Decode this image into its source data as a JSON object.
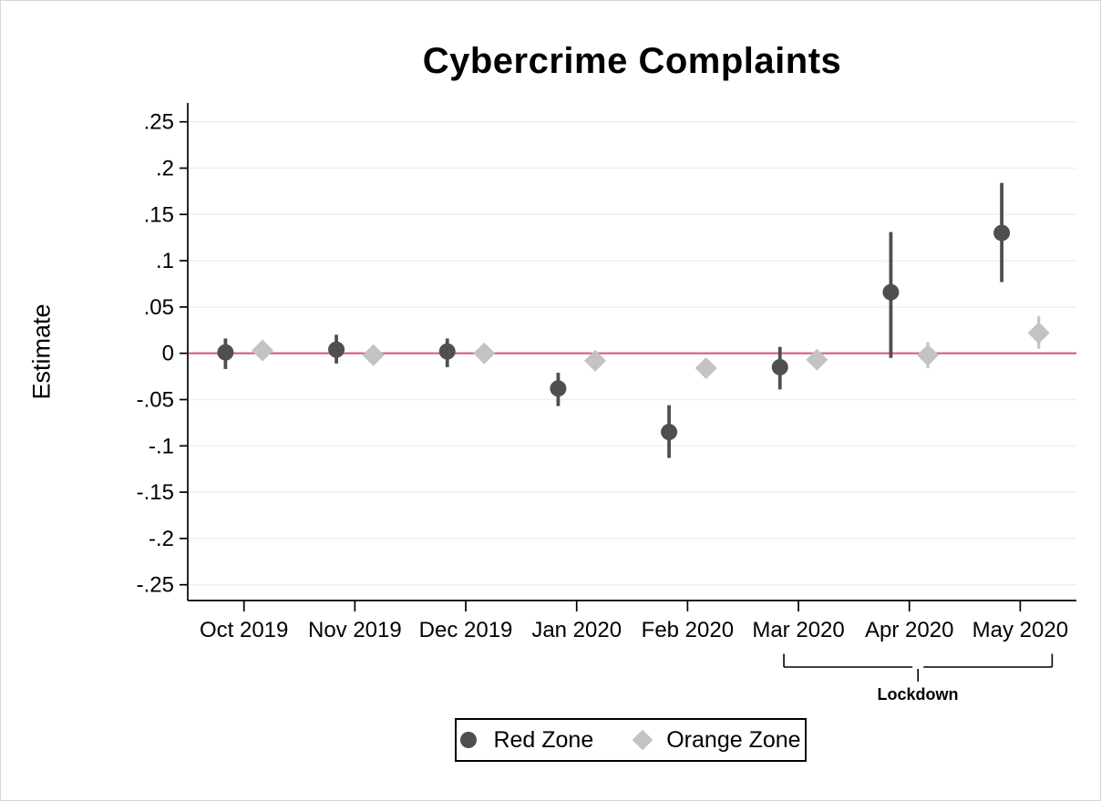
{
  "colors": {
    "red_zone": "#4f4f4f",
    "orange_zone": "#c3c3c3",
    "zero_line": "#d06278",
    "gridline": "#f0f0f0",
    "axis": "#000000"
  },
  "chart_data": {
    "type": "scatter",
    "subtype": "coefficient_plot_with_confidence_intervals",
    "title": "Cybercrime Complaints",
    "ylabel": "Estimate",
    "xlabel": "",
    "grid": true,
    "legend_position": "bottom-center",
    "ylim": [
      -0.27,
      0.27
    ],
    "yticks": [
      0.25,
      0.2,
      0.15,
      0.1,
      0.05,
      0,
      -0.05,
      -0.1,
      -0.15,
      -0.2,
      -0.25
    ],
    "ytick_labels": [
      ".25",
      ".2",
      ".15",
      ".1",
      ".05",
      "0",
      "-.05",
      "-.1",
      "-.15",
      "-.2",
      "-.25"
    ],
    "refline_y": 0,
    "categories": [
      "Oct 2019",
      "Nov 2019",
      "Dec 2019",
      "Jan 2020",
      "Feb 2020",
      "Mar 2020",
      "Apr 2020",
      "May 2020"
    ],
    "series": [
      {
        "name": "Red Zone",
        "marker": "circle",
        "color": "#4f4f4f",
        "estimates": [
          0.001,
          0.004,
          0.002,
          -0.038,
          -0.085,
          -0.015,
          0.066,
          0.13
        ],
        "ci_low": [
          -0.017,
          -0.011,
          -0.015,
          -0.057,
          -0.113,
          -0.039,
          -0.005,
          0.077
        ],
        "ci_high": [
          0.016,
          0.02,
          0.016,
          -0.021,
          -0.056,
          0.007,
          0.131,
          0.184
        ]
      },
      {
        "name": "Orange Zone",
        "marker": "diamond",
        "color": "#c3c3c3",
        "estimates": [
          0.003,
          -0.002,
          0.0,
          -0.008,
          -0.016,
          -0.007,
          -0.002,
          0.022
        ],
        "ci_low": [
          -0.005,
          -0.01,
          -0.008,
          -0.016,
          -0.024,
          -0.015,
          -0.016,
          0.005
        ],
        "ci_high": [
          0.011,
          0.006,
          0.008,
          0.0,
          -0.008,
          0.001,
          0.012,
          0.04
        ]
      }
    ],
    "annotation": {
      "label": "Lockdown",
      "span_categories": [
        "Mar 2020",
        "May 2020"
      ]
    }
  }
}
